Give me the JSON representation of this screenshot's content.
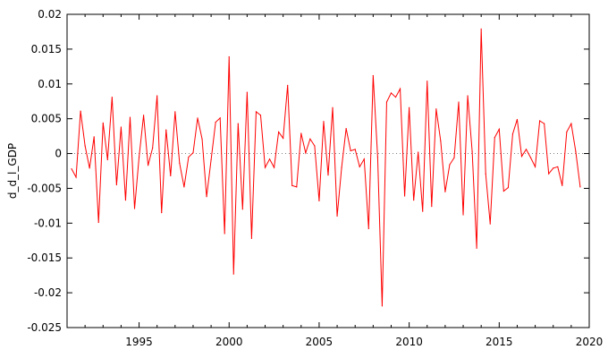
{
  "colors": {
    "series": "#ff0000",
    "frame": "#000000",
    "zero_line": "#808080",
    "background": "#ffffff"
  },
  "chart_data": {
    "type": "line",
    "title": "",
    "xlabel": "",
    "ylabel": "d_d_l_GDP",
    "xlim": [
      1991,
      2020
    ],
    "ylim": [
      -0.025,
      0.02
    ],
    "grid": false,
    "zero_line": true,
    "x_ticks": [
      1995,
      2000,
      2005,
      2010,
      2015,
      2020
    ],
    "x_tick_labels": [
      "1995",
      "2000",
      "2005",
      "2010",
      "2015",
      "2020"
    ],
    "y_ticks": [
      0.02,
      0.015,
      0.01,
      0.005,
      0,
      -0.005,
      -0.01,
      -0.015,
      -0.02,
      -0.025
    ],
    "y_tick_labels": [
      "0.02",
      "0.015",
      "0.01",
      "0.005",
      "0",
      "-0.005",
      "-0.01",
      "-0.015",
      "-0.02",
      "-0.025"
    ],
    "series": [
      {
        "start": 1991.25,
        "step": 0.25,
        "values": [
          -0.0022,
          -0.0034,
          0.0061,
          0.0011,
          -0.0021,
          0.0024,
          -0.0099,
          0.0044,
          -0.0009,
          0.0081,
          -0.0045,
          0.0038,
          -0.0067,
          0.0052,
          -0.0079,
          -0.0005,
          0.0055,
          -0.0017,
          0.0008,
          0.0083,
          -0.0085,
          0.0034,
          -0.0032,
          0.006,
          -0.0014,
          -0.0048,
          -0.0005,
          0.0001,
          0.0051,
          0.0021,
          -0.0062,
          -0.0009,
          0.0045,
          0.0051,
          -0.0115,
          0.0139,
          -0.0173,
          0.0043,
          -0.008,
          0.0088,
          -0.0122,
          0.006,
          0.0055,
          -0.002,
          -0.0008,
          -0.002,
          0.0031,
          0.0022,
          0.0098,
          -0.0046,
          -0.0048,
          0.0029,
          0.0001,
          0.0021,
          0.0011,
          -0.0068,
          0.0046,
          -0.0031,
          0.0066,
          -0.009,
          -0.002,
          0.0036,
          0.0004,
          0.0006,
          -0.0019,
          -0.0008,
          -0.0108,
          0.0112,
          -0.0005,
          -0.0219,
          0.0074,
          0.0087,
          0.0081,
          0.0093,
          -0.0061,
          0.0066,
          -0.0067,
          0.0002,
          -0.0083,
          0.0104,
          -0.0076,
          0.0064,
          0.0018,
          -0.0055,
          -0.0016,
          -0.0006,
          0.0074,
          -0.0088,
          0.0083,
          0.0003,
          -0.0136,
          0.0179,
          -0.0029,
          -0.0101,
          0.0023,
          0.0035,
          -0.0054,
          -0.0049,
          0.0028,
          0.0049,
          -0.0004,
          0.0006,
          -0.0006,
          -0.0019,
          0.0047,
          0.0043,
          -0.0029,
          -0.0021,
          -0.0019,
          -0.0046,
          0.0031,
          0.0043,
          0.0003,
          -0.0048
        ]
      }
    ]
  }
}
